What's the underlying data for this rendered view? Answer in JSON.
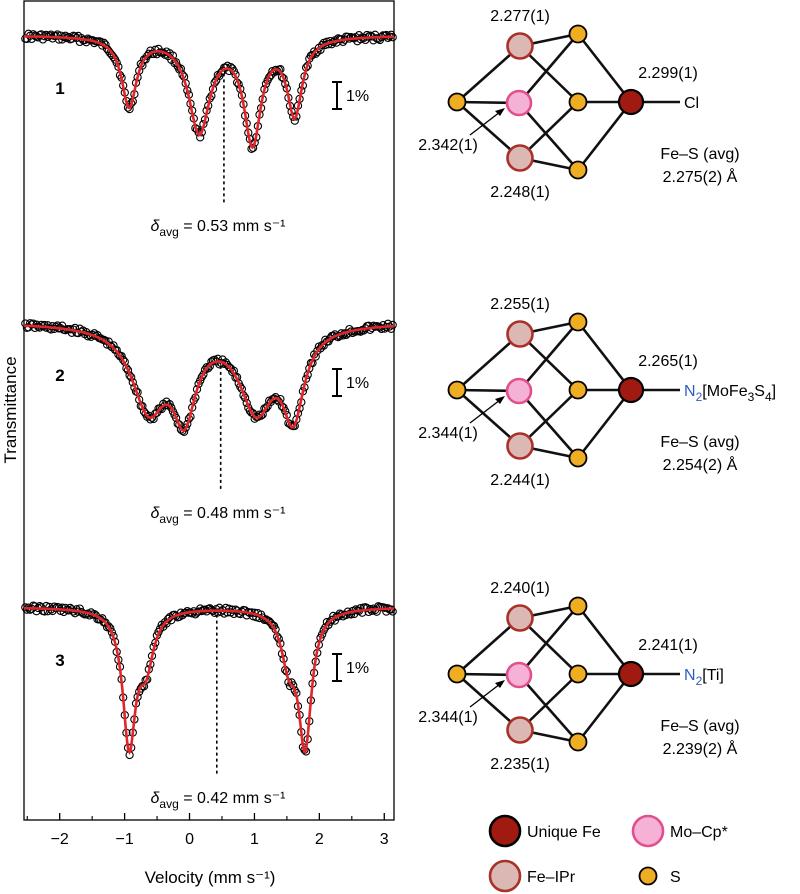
{
  "chart_data": {
    "type": "scatter",
    "xlabel": "Velocity (mm s⁻¹)",
    "ylabel": "Transmittance",
    "xlim": [
      -2.55,
      3.15
    ],
    "xticks": [
      "−2",
      "−1",
      "0",
      "1",
      "2",
      "3"
    ],
    "xtick_values": [
      -2,
      -1,
      0,
      1,
      2,
      3
    ],
    "scale_bar_label": "1%",
    "series_colors": {
      "data": "#000000",
      "fit": "#e0262a"
    },
    "spectra": [
      {
        "label": "1",
        "delta_prefix": "δ",
        "delta_sub": "avg",
        "delta_value": "= 0.53 mm s⁻¹",
        "delta_mm_s": 0.53,
        "peaks": [
          {
            "center": -0.93,
            "depth_percent": 3.0,
            "width": 0.14
          },
          {
            "center": 0.15,
            "depth_percent": 4.1,
            "width": 0.2
          },
          {
            "center": 0.97,
            "depth_percent": 4.5,
            "width": 0.16
          },
          {
            "center": 1.62,
            "depth_percent": 3.3,
            "width": 0.14
          }
        ]
      },
      {
        "label": "2",
        "delta_prefix": "δ",
        "delta_sub": "avg",
        "delta_value": "= 0.48 mm s⁻¹",
        "delta_mm_s": 0.48,
        "peaks": [
          {
            "center": -0.63,
            "depth_percent": 3.5,
            "width": 0.32
          },
          {
            "center": -0.08,
            "depth_percent": 3.5,
            "width": 0.22
          },
          {
            "center": 1.03,
            "depth_percent": 3.5,
            "width": 0.32
          },
          {
            "center": 1.6,
            "depth_percent": 3.6,
            "width": 0.2
          }
        ]
      },
      {
        "label": "3",
        "delta_prefix": "δ",
        "delta_sub": "avg",
        "delta_value": "= 0.42 mm s⁻¹",
        "delta_mm_s": 0.42,
        "peaks": [
          {
            "center": -0.93,
            "depth_percent": 5.8,
            "width": 0.12
          },
          {
            "center": -0.67,
            "depth_percent": 2.2,
            "width": 0.14
          },
          {
            "center": 1.53,
            "depth_percent": 2.1,
            "width": 0.14
          },
          {
            "center": 1.78,
            "depth_percent": 5.8,
            "width": 0.12
          }
        ]
      }
    ]
  },
  "structures": [
    {
      "label_top": "2.277(1)",
      "label_left": "2.342(1)",
      "label_bottom": "2.248(1)",
      "label_right": "2.299(1)",
      "ligand_prefix": "",
      "ligand_n2": "",
      "ligand_text": "Cl",
      "ligand_subs": [],
      "fes_label": "Fe–S (avg)",
      "fes_value": "2.275(2) Å"
    },
    {
      "label_top": "2.255(1)",
      "label_left": "2.344(1)",
      "label_bottom": "2.244(1)",
      "label_right": "2.265(1)",
      "ligand_n2": "N",
      "ligand_n2_sub": "2",
      "ligand_text": "[MoFe",
      "ligand_subs": [
        "3",
        "S",
        "4",
        "]"
      ],
      "fes_label": "Fe–S (avg)",
      "fes_value": "2.254(2) Å"
    },
    {
      "label_top": "2.240(1)",
      "label_left": "2.344(1)",
      "label_bottom": "2.235(1)",
      "label_right": "2.241(1)",
      "ligand_n2": "N",
      "ligand_n2_sub": "2",
      "ligand_text": "[Ti]",
      "ligand_subs": [],
      "fes_label": "Fe–S (avg)",
      "fes_value": "2.239(2) Å"
    }
  ],
  "legend": [
    {
      "label": "Unique Fe",
      "fill": "#a01a12",
      "stroke": "#000000"
    },
    {
      "label": "Mo–Cp*",
      "fill": "#f6b2d6",
      "stroke": "#e0508a"
    },
    {
      "label": "Fe–IPr",
      "fill": "#dcb8b4",
      "stroke": "#a8322a"
    },
    {
      "label": "S",
      "fill": "#eead22",
      "stroke": "#000000"
    }
  ],
  "colors": {
    "unique_fe": "#a01a12",
    "mo_cp": "#f6b2d6",
    "mo_cp_stroke": "#e0508a",
    "fe_ipr": "#dcb8b4",
    "fe_ipr_stroke": "#a8322a",
    "sulfur": "#eead22",
    "n2_blue": "#2f5cc4",
    "fit_red": "#e0262a"
  }
}
